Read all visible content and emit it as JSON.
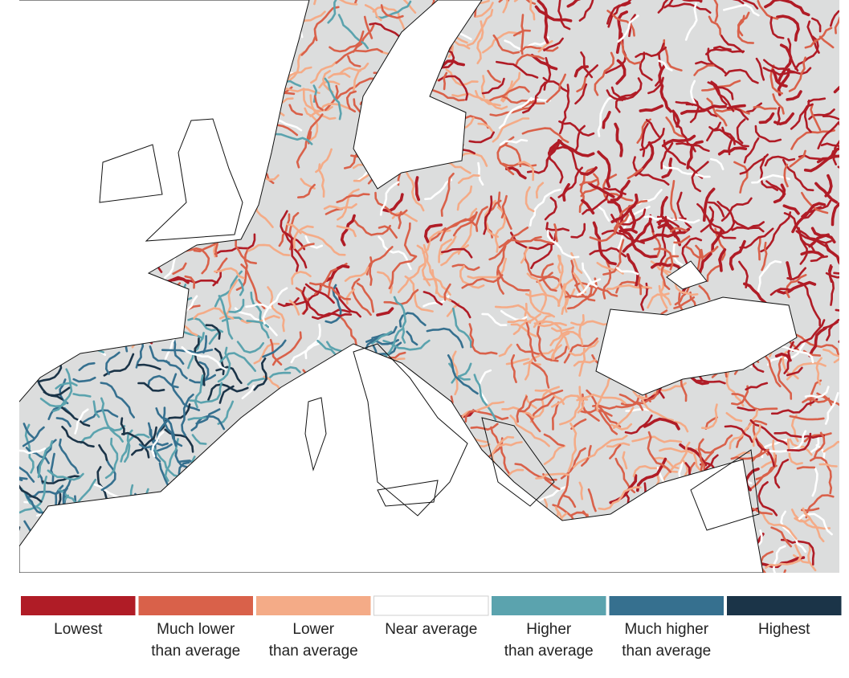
{
  "legend": {
    "items": [
      {
        "label": [
          "Lowest"
        ],
        "color": "#b01c26"
      },
      {
        "label": [
          "Much lower",
          "than average"
        ],
        "color": "#d9614a"
      },
      {
        "label": [
          "Lower",
          "than average"
        ],
        "color": "#f4ab87"
      },
      {
        "label": [
          "Near average"
        ],
        "color": "#ffffff"
      },
      {
        "label": [
          "Higher",
          "than average"
        ],
        "color": "#5ba3ae"
      },
      {
        "label": [
          "Much higher",
          "than average"
        ],
        "color": "#36708f"
      },
      {
        "label": [
          "Highest"
        ],
        "color": "#1b3448"
      }
    ]
  }
}
